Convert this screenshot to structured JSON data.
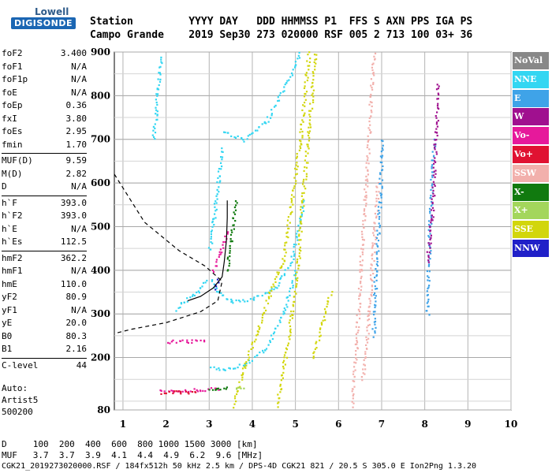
{
  "logo": {
    "top": "Lowell",
    "bottom": "DIGISONDE"
  },
  "header": {
    "line1": "Station         YYYY DAY   DDD HHMMSS P1  FFS S AXN PPS IGA PS",
    "line2": "Campo Grande    2019 Sep30 273 020000 RSF 005 2 713 100 03+ 36"
  },
  "params": [
    [
      [
        "foF2",
        "3.400"
      ],
      [
        "foF1",
        "N/A"
      ],
      [
        "foF1p",
        "N/A"
      ],
      [
        "foE",
        "N/A"
      ],
      [
        "foEp",
        "0.36"
      ],
      [
        "fxI",
        "3.80"
      ],
      [
        "foEs",
        "2.95"
      ],
      [
        "fmin",
        "1.70"
      ]
    ],
    [
      [
        "MUF(D)",
        "9.59"
      ],
      [
        "M(D)",
        "2.82"
      ],
      [
        "D",
        "N/A"
      ]
    ],
    [
      [
        "h`F",
        "393.0"
      ],
      [
        "h`F2",
        "393.0"
      ],
      [
        "h`E",
        "N/A"
      ],
      [
        "h`Es",
        "112.5"
      ]
    ],
    [
      [
        "hmF2",
        "362.2"
      ],
      [
        "hmF1",
        "N/A"
      ],
      [
        "hmE",
        "110.0"
      ],
      [
        "yF2",
        "80.9"
      ],
      [
        "yF1",
        "N/A"
      ],
      [
        "yE",
        "20.0"
      ],
      [
        "B0",
        "80.3"
      ],
      [
        "B1",
        "2.16"
      ]
    ],
    [
      [
        "C-level",
        "44"
      ]
    ]
  ],
  "auto": {
    "l1": "Auto:",
    "l2": "Artist5",
    "l3": "500200"
  },
  "legend": [
    {
      "label": "NoVal",
      "color": "#888888"
    },
    {
      "label": "NNE",
      "color": "#33d6f2"
    },
    {
      "label": "E",
      "color": "#3fa3e8"
    },
    {
      "label": "W",
      "color": "#a0108f"
    },
    {
      "label": "Vo-",
      "color": "#e6199b"
    },
    {
      "label": "Vo+",
      "color": "#e01232"
    },
    {
      "label": "SSW",
      "color": "#f2b0ac"
    },
    {
      "label": "X-",
      "color": "#117a0f"
    },
    {
      "label": "X+",
      "color": "#a3d65c"
    },
    {
      "label": "SSE",
      "color": "#d2d60c"
    },
    {
      "label": "NNW",
      "color": "#2020c8"
    }
  ],
  "bottom": {
    "line1": "D     100  200  400  600  800 1000 1500 3000 [km]",
    "line2": "MUF   3.7  3.7  3.9  4.1  4.4  4.9  6.2  9.6 [MHz]",
    "line3": "CGK21_2019273020000.RSF / 184fx512h 50 kHz 2.5 km / DPS-4D CGK21 821 / 20.5 S 305.0 E Ion2Png 1.3.20"
  },
  "chart_data": {
    "type": "scatter",
    "xlabel": "",
    "ylabel": "",
    "xlim": [
      0.8,
      10.0
    ],
    "ylim": [
      80,
      900
    ],
    "xticks": [
      1,
      2,
      3,
      4,
      5,
      6,
      7,
      8,
      9,
      10
    ],
    "yticks": [
      80,
      200,
      300,
      400,
      500,
      600,
      700,
      800,
      900
    ],
    "grid": true,
    "traces": [
      {
        "mode": "NNE",
        "color": "#33d6f2",
        "segments": [
          [
            [
              3.05,
              380
            ],
            [
              3.2,
              350
            ],
            [
              3.5,
              330
            ],
            [
              4.0,
              335
            ],
            [
              4.5,
              360
            ],
            [
              4.9,
              420
            ],
            [
              5.2,
              560
            ]
          ],
          [
            [
              3.05,
              180
            ],
            [
              3.3,
              175
            ],
            [
              3.8,
              185
            ],
            [
              4.3,
              220
            ],
            [
              4.7,
              300
            ],
            [
              5.0,
              400
            ]
          ],
          [
            [
              3.3,
              720
            ],
            [
              3.8,
              700
            ],
            [
              4.3,
              740
            ],
            [
              4.8,
              830
            ],
            [
              5.1,
              900
            ]
          ],
          [
            [
              1.7,
              700
            ],
            [
              1.75,
              760
            ],
            [
              1.8,
              820
            ],
            [
              1.9,
              890
            ]
          ],
          [
            [
              2.2,
              310
            ],
            [
              2.4,
              330
            ],
            [
              2.7,
              350
            ],
            [
              2.9,
              380
            ]
          ],
          [
            [
              3.0,
              450
            ],
            [
              3.1,
              520
            ],
            [
              3.2,
              610
            ],
            [
              3.3,
              680
            ]
          ]
        ]
      },
      {
        "mode": "SSE",
        "color": "#d2d60c",
        "segments": [
          [
            [
              3.55,
              90
            ],
            [
              3.8,
              180
            ],
            [
              4.1,
              260
            ],
            [
              4.4,
              350
            ],
            [
              4.7,
              420
            ],
            [
              4.9,
              560
            ],
            [
              5.1,
              700
            ],
            [
              5.3,
              900
            ]
          ],
          [
            [
              4.55,
              90
            ],
            [
              4.75,
              200
            ],
            [
              4.9,
              300
            ],
            [
              5.05,
              420
            ],
            [
              5.15,
              560
            ],
            [
              5.3,
              720
            ],
            [
              5.45,
              900
            ]
          ],
          [
            [
              5.4,
              200
            ],
            [
              5.6,
              280
            ],
            [
              5.8,
              350
            ]
          ]
        ]
      },
      {
        "mode": "SSW",
        "color": "#f2b0ac",
        "segments": [
          [
            [
              6.3,
              90
            ],
            [
              6.4,
              230
            ],
            [
              6.5,
              400
            ],
            [
              6.6,
              560
            ],
            [
              6.7,
              720
            ],
            [
              6.8,
              900
            ]
          ],
          [
            [
              6.55,
              150
            ],
            [
              6.7,
              300
            ],
            [
              6.8,
              460
            ],
            [
              6.9,
              600
            ]
          ]
        ]
      },
      {
        "mode": "E",
        "color": "#3fa3e8",
        "segments": [
          [
            [
              6.8,
              250
            ],
            [
              6.85,
              400
            ],
            [
              6.95,
              560
            ],
            [
              7.0,
              700
            ]
          ],
          [
            [
              8.05,
              300
            ],
            [
              8.1,
              500
            ],
            [
              8.2,
              700
            ]
          ]
        ]
      },
      {
        "mode": "W",
        "color": "#a0108f",
        "segments": [
          [
            [
              8.05,
              420
            ],
            [
              8.15,
              520
            ],
            [
              8.25,
              720
            ],
            [
              8.3,
              830
            ]
          ]
        ]
      },
      {
        "mode": "Vo-",
        "color": "#e6199b",
        "segments": [
          [
            [
              1.85,
              125
            ],
            [
              2.3,
              125
            ],
            [
              2.8,
              128
            ],
            [
              3.2,
              130
            ]
          ],
          [
            [
              2.0,
              238
            ],
            [
              2.5,
              238
            ],
            [
              2.9,
              240
            ]
          ],
          [
            [
              3.05,
              400
            ],
            [
              3.25,
              440
            ],
            [
              3.4,
              490
            ]
          ]
        ]
      },
      {
        "mode": "Vo+",
        "color": "#e01232",
        "segments": [
          [
            [
              1.9,
              120
            ],
            [
              2.3,
              122
            ],
            [
              2.7,
              122
            ]
          ]
        ]
      },
      {
        "mode": "X-",
        "color": "#117a0f",
        "segments": [
          [
            [
              3.0,
              130
            ],
            [
              3.2,
              131
            ],
            [
              3.4,
              132
            ]
          ],
          [
            [
              3.4,
              400
            ],
            [
              3.5,
              470
            ],
            [
              3.6,
              560
            ]
          ]
        ]
      },
      {
        "mode": "X+",
        "color": "#a3d65c",
        "segments": [
          [
            [
              3.6,
              130
            ],
            [
              3.8,
              132
            ]
          ]
        ]
      },
      {
        "mode": "NNW",
        "color": "#2020c8",
        "segments": [
          [
            [
              3.1,
              360
            ],
            [
              3.2,
              380
            ]
          ]
        ]
      }
    ],
    "profile": {
      "style": "dashed",
      "points": [
        [
          0.8,
          620
        ],
        [
          1.5,
          510
        ],
        [
          2.3,
          445
        ],
        [
          2.9,
          410
        ],
        [
          3.3,
          375
        ],
        [
          3.2,
          330
        ],
        [
          2.8,
          305
        ],
        [
          2.0,
          280
        ],
        [
          1.2,
          265
        ],
        [
          0.8,
          255
        ]
      ]
    },
    "trace_fit": {
      "style": "solid",
      "points": [
        [
          2.5,
          330
        ],
        [
          2.8,
          340
        ],
        [
          3.1,
          360
        ],
        [
          3.3,
          385
        ],
        [
          3.35,
          420
        ],
        [
          3.4,
          470
        ],
        [
          3.42,
          520
        ],
        [
          3.42,
          560
        ]
      ]
    }
  }
}
